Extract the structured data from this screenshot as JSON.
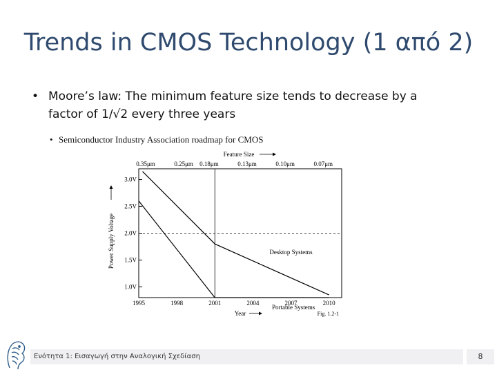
{
  "slide": {
    "title": "Trends in CMOS Technology (1 από 2)",
    "bullet_symbol": "•",
    "bullet_text": "Moore’s law: The minimum feature size tends to decrease by a factor of 1/√2 every three years",
    "sub_bullet_symbol": "•",
    "sub_bullet_text": "Semiconductor Industry Association roadmap for CMOS"
  },
  "footer": {
    "text": "Ενότητα 1: Εισαγωγή στην Αναλογική Σχεδίαση",
    "page_number": "8"
  },
  "chart_data": {
    "type": "line",
    "title": "",
    "xlabel": "Year",
    "ylabel": "Power Supply Voltage",
    "top_axis_label": "Feature Size",
    "figure_label": "Fig. 1.2-1",
    "xlim": [
      1995,
      2011
    ],
    "ylim": [
      0.8,
      3.2
    ],
    "x_ticks": [
      {
        "x": 1995,
        "label": "1995"
      },
      {
        "x": 1998,
        "label": "1998"
      },
      {
        "x": 2001,
        "label": "2001"
      },
      {
        "x": 2004,
        "label": "2004"
      },
      {
        "x": 2007,
        "label": "2007"
      },
      {
        "x": 2010,
        "label": "2010"
      }
    ],
    "y_ticks": [
      {
        "y": 3.0,
        "label": "3.0V"
      },
      {
        "y": 2.5,
        "label": "2.5V"
      },
      {
        "y": 2.0,
        "label": "2.0V"
      },
      {
        "y": 1.5,
        "label": "1.5V"
      },
      {
        "y": 1.0,
        "label": "1.0V"
      }
    ],
    "top_ticks": [
      {
        "x": 1995,
        "label": "0.35μm"
      },
      {
        "x": 1998,
        "label": "0.25μm"
      },
      {
        "x": 2000,
        "label": "0.18μm"
      },
      {
        "x": 2003,
        "label": "0.13μm"
      },
      {
        "x": 2006,
        "label": "0.10μm"
      },
      {
        "x": 2009,
        "label": "0.07μm"
      }
    ],
    "series": [
      {
        "name": "Desktop Systems",
        "x": [
          1995.3,
          2001,
          2010
        ],
        "y": [
          3.15,
          1.8,
          0.85
        ]
      },
      {
        "name": "Portable Systems",
        "x": [
          1995,
          2001,
          2010
        ],
        "y": [
          2.6,
          0.8,
          0.8
        ]
      }
    ],
    "reference_lines": {
      "vertical_x": 2001,
      "horizontal_dashed_y": 2.0
    },
    "grid": false,
    "legend": "none"
  }
}
